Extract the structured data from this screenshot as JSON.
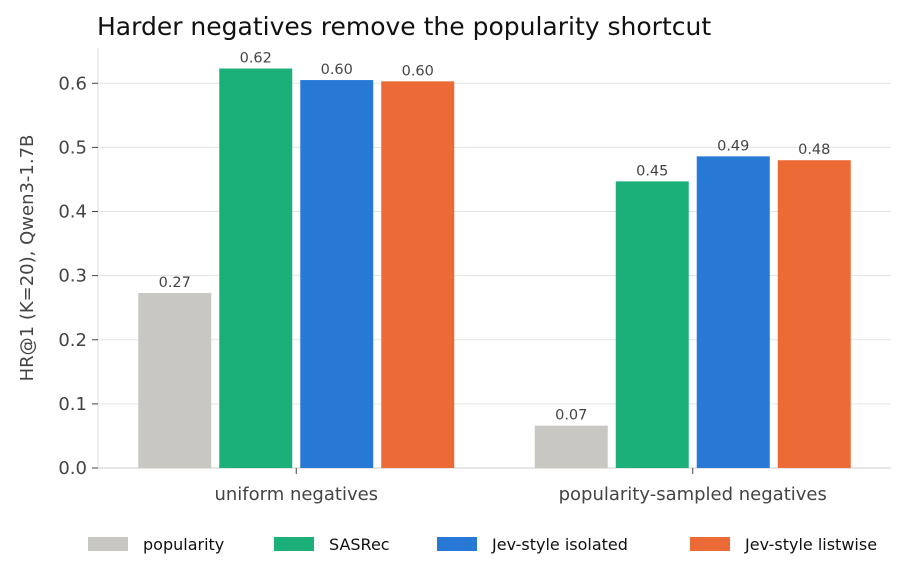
{
  "chart_data": {
    "type": "bar",
    "title": "Harder negatives remove the popularity shortcut",
    "xlabel": "",
    "ylabel": "HR@1 (K=20), Qwen3-1.7B",
    "categories": [
      "uniform negatives",
      "popularity-sampled negatives"
    ],
    "series": [
      {
        "name": "popularity",
        "values": [
          0.273,
          0.066
        ],
        "labels": [
          "0.27",
          "0.07"
        ],
        "color": "#c8c7c2"
      },
      {
        "name": "SASRec",
        "values": [
          0.623,
          0.447
        ],
        "labels": [
          "0.62",
          "0.45"
        ],
        "color": "#1bb07a"
      },
      {
        "name": "Jev-style isolated",
        "values": [
          0.605,
          0.486
        ],
        "labels": [
          "0.60",
          "0.49"
        ],
        "color": "#2878d6"
      },
      {
        "name": "Jev-style listwise",
        "values": [
          0.603,
          0.48
        ],
        "labels": [
          "0.60",
          "0.48"
        ],
        "color": "#ec6a35"
      }
    ],
    "ylim": [
      0,
      0.655
    ],
    "yticks": [
      0.0,
      0.1,
      0.2,
      0.3,
      0.4,
      0.5,
      0.6
    ],
    "ytick_labels": [
      "0.0",
      "0.1",
      "0.2",
      "0.3",
      "0.4",
      "0.5",
      "0.6"
    ],
    "grid": true,
    "legend_position": "bottom"
  }
}
